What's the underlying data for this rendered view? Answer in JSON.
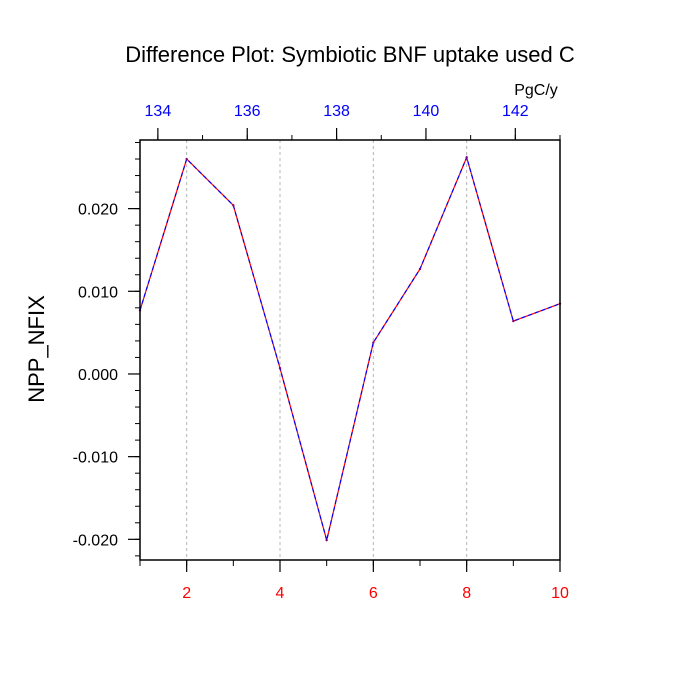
{
  "chart_data": {
    "type": "line",
    "title": "Difference Plot: Symbiotic BNF uptake used C",
    "ylabel": "NPP_NFIX",
    "top_axis_units": "PgC/y",
    "x": [
      1,
      2,
      3,
      4,
      5,
      6,
      7,
      8,
      9,
      10
    ],
    "xlim": [
      1,
      10
    ],
    "x_ticks": [
      "2",
      "4",
      "6",
      "8",
      "10"
    ],
    "x_tick_values": [
      2,
      4,
      6,
      8,
      10
    ],
    "top_xlim": [
      133.6,
      143.0
    ],
    "top_ticks": [
      "134",
      "136",
      "138",
      "140",
      "142"
    ],
    "top_tick_values": [
      134,
      136,
      138,
      140,
      142
    ],
    "ylim": [
      -0.0225,
      0.0283
    ],
    "y_ticks": [
      "0.020",
      "0.010",
      "0.000",
      "-0.010",
      "-0.020"
    ],
    "y_tick_values": [
      0.02,
      0.01,
      0.0,
      -0.01,
      -0.02
    ],
    "series": [
      {
        "values": [
          0.0077,
          0.026,
          0.0204,
          0.0007,
          -0.0201,
          0.0038,
          0.0127,
          0.0262,
          0.0064,
          0.0085
        ]
      }
    ],
    "grid": "vertical-dotted",
    "colors": {
      "line_a": "#ff0000",
      "line_b": "#0000ff",
      "bottom_ticks": "#ff0000",
      "top_ticks": "#0000ff",
      "grid": "#b4b4b4"
    }
  }
}
